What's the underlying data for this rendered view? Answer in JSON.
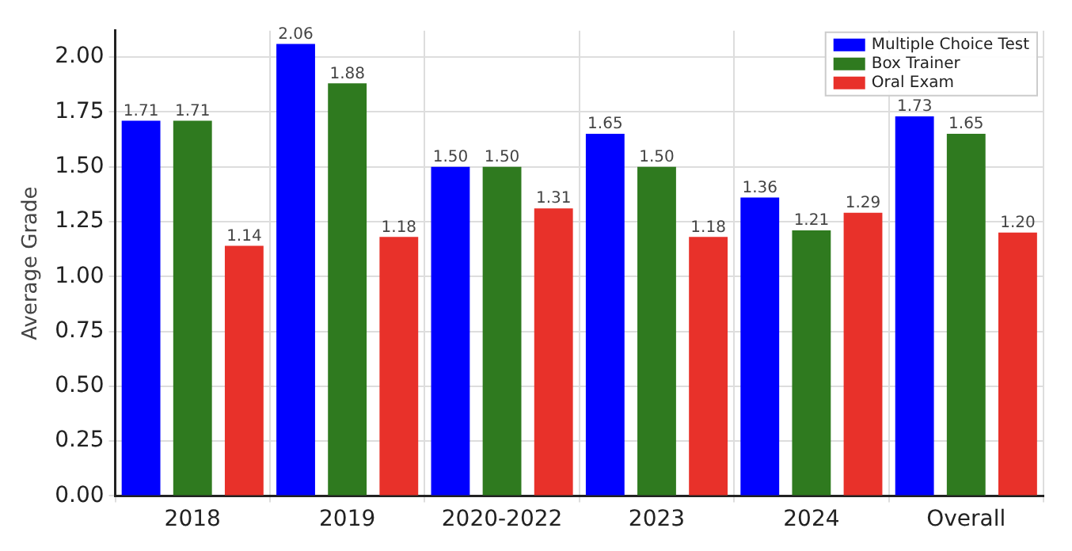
{
  "chart_data": {
    "type": "bar",
    "ylabel": "Average Grade",
    "categories": [
      "2018",
      "2019",
      "2020-2022",
      "2023",
      "2024",
      "Overall"
    ],
    "series": [
      {
        "name": "Multiple Choice Test",
        "color": "#0000ff",
        "values": [
          1.71,
          2.06,
          1.5,
          1.65,
          1.36,
          1.73
        ],
        "value_labels": [
          "1.71",
          "2.06",
          "1.50",
          "1.65",
          "1.36",
          "1.73"
        ]
      },
      {
        "name": "Box Trainer",
        "color": "#2f7a1f",
        "values": [
          1.71,
          1.88,
          1.5,
          1.5,
          1.21,
          1.65
        ],
        "value_labels": [
          "1.71",
          "1.88",
          "1.50",
          "1.50",
          "1.21",
          "1.65"
        ]
      },
      {
        "name": "Oral Exam",
        "color": "#e8312a",
        "values": [
          1.14,
          1.18,
          1.31,
          1.18,
          1.29,
          1.2
        ],
        "value_labels": [
          "1.14",
          "1.18",
          "1.31",
          "1.18",
          "1.29",
          "1.20"
        ]
      }
    ],
    "ylim": [
      0,
      2.12
    ],
    "yticks": [
      "0.00",
      "0.25",
      "0.50",
      "0.75",
      "1.00",
      "1.25",
      "1.50",
      "1.75",
      "2.00"
    ],
    "grid": true,
    "legend": "top right"
  }
}
